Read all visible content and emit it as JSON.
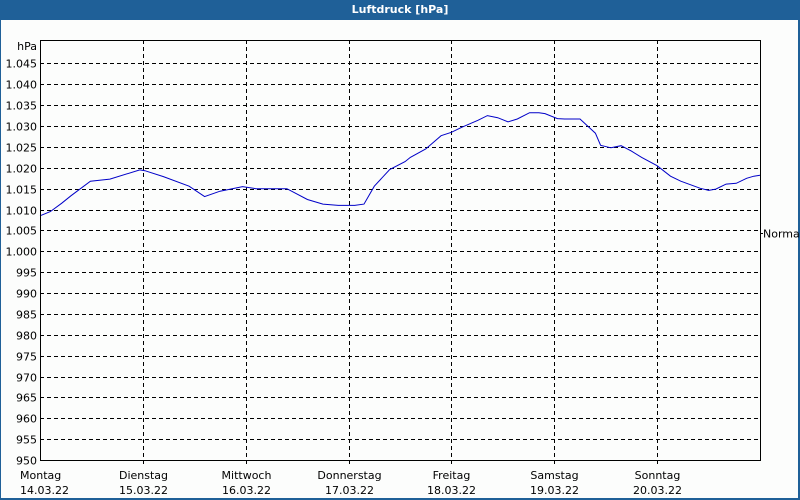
{
  "window": {
    "title": "Luftdruck [hPa]"
  },
  "chart_data": {
    "type": "line",
    "title": "Luftdruck [hPa]",
    "ylabel": "hPa",
    "xlabel": "",
    "ylim": [
      950,
      1045
    ],
    "y_ticks": [
      "1.045",
      "1.040",
      "1.035",
      "1.030",
      "1.025",
      "1.020",
      "1.015",
      "1.010",
      "1.005",
      "1.000",
      "995",
      "990",
      "985",
      "980",
      "975",
      "970",
      "965",
      "960",
      "955",
      "950"
    ],
    "y_tick_values": [
      1045,
      1040,
      1035,
      1030,
      1025,
      1020,
      1015,
      1010,
      1005,
      1000,
      995,
      990,
      985,
      980,
      975,
      970,
      965,
      960,
      955,
      950
    ],
    "x_categories": [
      {
        "day": "Montag",
        "date": "14.03.22"
      },
      {
        "day": "Dienstag",
        "date": "15.03.22"
      },
      {
        "day": "Mittwoch",
        "date": "16.03.22"
      },
      {
        "day": "Donnerstag",
        "date": "17.03.22"
      },
      {
        "day": "Freitag",
        "date": "18.03.22"
      },
      {
        "day": "Samstag",
        "date": "19.03.22"
      },
      {
        "day": "Sonntag",
        "date": "20.03.22"
      }
    ],
    "grid": true,
    "reference_line": {
      "label": "Normal",
      "value": 1005
    },
    "series": [
      {
        "name": "Luftdruck",
        "color": "#0000c8",
        "x_days": [
          0.0,
          0.1,
          0.21,
          0.3,
          0.49,
          0.68,
          0.97,
          1.02,
          1.2,
          1.45,
          1.6,
          1.75,
          1.97,
          2.1,
          2.4,
          2.6,
          2.75,
          2.9,
          3.06,
          3.15,
          3.25,
          3.4,
          3.55,
          3.6,
          3.75,
          3.9,
          4.0,
          4.1,
          4.26,
          4.35,
          4.45,
          4.55,
          4.64,
          4.76,
          4.85,
          4.91,
          5.03,
          5.1,
          5.25,
          5.4,
          5.45,
          5.55,
          5.65,
          5.75,
          5.85,
          6.0,
          6.13,
          6.23,
          6.42,
          6.5,
          6.57,
          6.67,
          6.77,
          6.87,
          6.94,
          7.0
        ],
        "values": [
          1008.5,
          1009.5,
          1011.5,
          1013.3,
          1016.8,
          1017.3,
          1019.5,
          1019.3,
          1017.9,
          1015.6,
          1013.1,
          1014.4,
          1015.5,
          1015.0,
          1015.0,
          1012.4,
          1011.3,
          1011.0,
          1011.0,
          1011.3,
          1015.6,
          1019.6,
          1021.5,
          1022.5,
          1024.5,
          1027.7,
          1028.5,
          1029.7,
          1031.4,
          1032.5,
          1032.0,
          1031.0,
          1031.7,
          1033.2,
          1033.2,
          1033.0,
          1031.8,
          1031.7,
          1031.7,
          1028.3,
          1025.4,
          1024.8,
          1025.3,
          1024.0,
          1022.5,
          1020.5,
          1018.0,
          1016.8,
          1015.1,
          1014.6,
          1014.9,
          1016.1,
          1016.3,
          1017.5,
          1018.0,
          1018.2
        ]
      }
    ]
  }
}
